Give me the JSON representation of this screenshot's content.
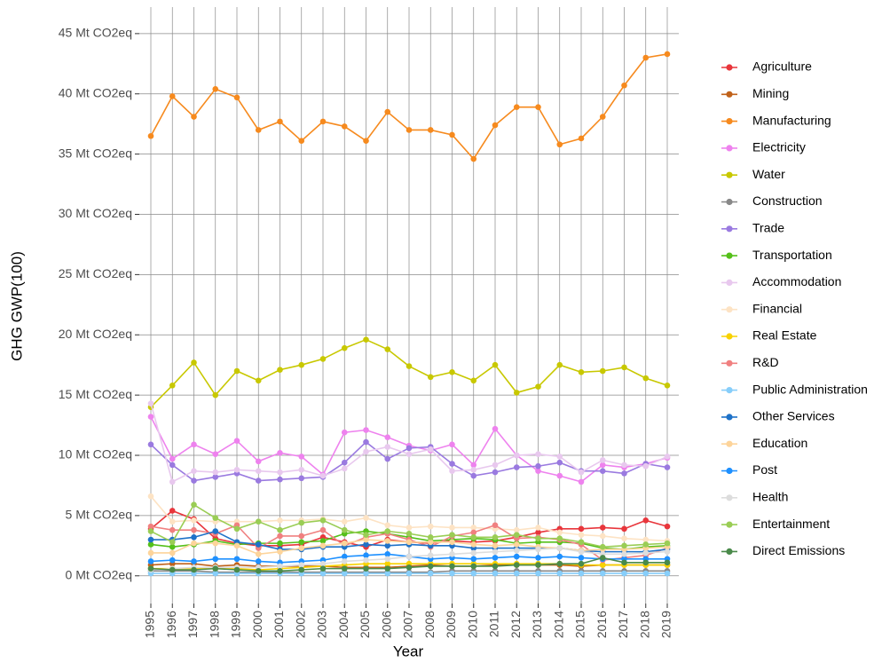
{
  "chart_data": {
    "type": "line",
    "x_label": "Year",
    "y_label": "GHG GWP(100)",
    "categories": [
      "1995",
      "1996",
      "1997",
      "1998",
      "1999",
      "2000",
      "2001",
      "2002",
      "2003",
      "2004",
      "2005",
      "2006",
      "2007",
      "2008",
      "2009",
      "2010",
      "2011",
      "2012",
      "2013",
      "2014",
      "2015",
      "2016",
      "2017",
      "2018",
      "2019"
    ],
    "ylim": [
      -2.3,
      47.2
    ],
    "yticks": [
      {
        "value": 0,
        "label": "0 Mt CO2eq"
      },
      {
        "value": 5,
        "label": "5 Mt CO2eq"
      },
      {
        "value": 10,
        "label": "10 Mt CO2eq"
      },
      {
        "value": 15,
        "label": "15 Mt CO2eq"
      },
      {
        "value": 20,
        "label": "20 Mt CO2eq"
      },
      {
        "value": 25,
        "label": "25 Mt CO2eq"
      },
      {
        "value": 30,
        "label": "30 Mt CO2eq"
      },
      {
        "value": 35,
        "label": "35 Mt CO2eq"
      },
      {
        "value": 40,
        "label": "40 Mt CO2eq"
      },
      {
        "value": 45,
        "label": "45 Mt CO2eq"
      }
    ],
    "grid": true,
    "legend": "right",
    "series": [
      {
        "name": "Agriculture",
        "color": "#e8363c",
        "values": [
          3.9,
          5.4,
          4.7,
          3.1,
          2.7,
          2.5,
          2.5,
          2.6,
          3.2,
          2.8,
          2.4,
          3.0,
          2.8,
          2.7,
          2.9,
          2.8,
          2.9,
          3.2,
          3.6,
          3.9,
          3.9,
          4.0,
          3.9,
          4.6,
          4.1
        ]
      },
      {
        "name": "Mining",
        "color": "#c0621a",
        "values": [
          0.9,
          1.0,
          1.0,
          0.8,
          0.9,
          0.8,
          0.8,
          0.8,
          0.8,
          0.7,
          0.7,
          0.7,
          0.8,
          0.9,
          0.8,
          0.8,
          0.9,
          0.9,
          0.9,
          0.9,
          0.8,
          0.9,
          0.9,
          0.9,
          0.9
        ]
      },
      {
        "name": "Manufacturing",
        "color": "#f68a1e",
        "values": [
          36.5,
          39.8,
          38.1,
          40.4,
          39.7,
          37.0,
          37.7,
          36.1,
          37.7,
          37.3,
          36.1,
          38.5,
          37.0,
          37.0,
          36.6,
          34.6,
          37.4,
          38.9,
          38.9,
          35.8,
          36.3,
          38.1,
          40.7,
          43.0,
          43.3
        ]
      },
      {
        "name": "Electricity",
        "color": "#ee82ee",
        "values": [
          13.2,
          9.7,
          10.9,
          10.1,
          11.2,
          9.5,
          10.2,
          9.9,
          8.4,
          11.9,
          12.1,
          11.5,
          10.8,
          10.4,
          10.9,
          9.2,
          12.2,
          10.0,
          8.7,
          8.3,
          7.8,
          9.2,
          9.0,
          9.3,
          9.8
        ]
      },
      {
        "name": "Water",
        "color": "#c8c800",
        "values": [
          14.0,
          15.8,
          17.7,
          15.0,
          17.0,
          16.2,
          17.1,
          17.5,
          18.0,
          18.9,
          19.6,
          18.8,
          17.4,
          16.5,
          16.9,
          16.2,
          17.5,
          15.2,
          15.7,
          17.5,
          16.9,
          17.0,
          17.3,
          16.4,
          15.8
        ]
      },
      {
        "name": "Construction",
        "color": "#888888",
        "values": [
          0.4,
          0.4,
          0.4,
          0.3,
          0.3,
          0.3,
          0.3,
          0.3,
          0.3,
          0.3,
          0.3,
          0.3,
          0.3,
          0.3,
          0.4,
          0.4,
          0.4,
          0.4,
          0.4,
          0.4,
          0.4,
          0.4,
          0.4,
          0.4,
          0.4
        ]
      },
      {
        "name": "Trade",
        "color": "#9a7ae0",
        "values": [
          10.9,
          9.2,
          7.9,
          8.2,
          8.5,
          7.9,
          8.0,
          8.1,
          8.2,
          9.4,
          11.1,
          9.7,
          10.6,
          10.7,
          9.3,
          8.3,
          8.6,
          9.0,
          9.1,
          9.4,
          8.7,
          8.7,
          8.5,
          9.3,
          9.0
        ]
      },
      {
        "name": "Transportation",
        "color": "#55c01a",
        "values": [
          2.6,
          2.4,
          2.6,
          2.9,
          2.6,
          2.7,
          2.7,
          2.8,
          2.9,
          3.5,
          3.7,
          3.5,
          3.2,
          2.9,
          3.0,
          3.1,
          3.0,
          2.7,
          2.8,
          2.8,
          2.7,
          2.3,
          2.2,
          2.4,
          2.5
        ]
      },
      {
        "name": "Accommodation",
        "color": "#e8c8ee",
        "values": [
          14.3,
          7.8,
          8.7,
          8.6,
          8.8,
          8.7,
          8.6,
          8.8,
          8.3,
          8.9,
          10.3,
          10.7,
          10.1,
          10.5,
          8.7,
          8.8,
          9.2,
          10.0,
          10.1,
          9.9,
          8.6,
          9.6,
          9.2,
          9.1,
          9.9
        ]
      },
      {
        "name": "Financial",
        "color": "#fde3c4",
        "values": [
          6.6,
          4.5,
          4.6,
          4.5,
          4.5,
          4.5,
          4.6,
          4.6,
          4.7,
          4.5,
          4.8,
          4.2,
          4.0,
          4.1,
          4.0,
          4.0,
          3.9,
          3.8,
          4.0,
          3.6,
          3.4,
          3.3,
          3.1,
          3.0,
          2.9
        ]
      },
      {
        "name": "Real Estate",
        "color": "#f8d200",
        "values": [
          0.6,
          0.6,
          0.6,
          0.6,
          0.6,
          0.5,
          0.6,
          0.7,
          0.8,
          0.9,
          1.0,
          1.0,
          1.0,
          1.0,
          1.0,
          1.0,
          1.0,
          1.0,
          1.0,
          1.0,
          0.9,
          0.9,
          0.9,
          0.9,
          0.9
        ]
      },
      {
        "name": "R&D",
        "color": "#f08080",
        "values": [
          4.1,
          3.8,
          3.8,
          3.5,
          4.2,
          2.3,
          3.3,
          3.3,
          3.8,
          2.5,
          3.2,
          3.5,
          3.0,
          2.4,
          3.3,
          3.6,
          4.2,
          3.1,
          3.2,
          3.0,
          2.6,
          1.3,
          1.5,
          1.7,
          2.3
        ]
      },
      {
        "name": "Public Administration",
        "color": "#87cefa",
        "values": [
          0.2,
          0.2,
          0.2,
          0.2,
          0.2,
          0.2,
          0.2,
          0.2,
          0.2,
          0.2,
          0.2,
          0.2,
          0.2,
          0.2,
          0.2,
          0.2,
          0.2,
          0.2,
          0.2,
          0.2,
          0.2,
          0.2,
          0.2,
          0.2,
          0.2
        ]
      },
      {
        "name": "Other Services",
        "color": "#1f72c8",
        "values": [
          3.0,
          3.0,
          3.2,
          3.7,
          2.8,
          2.6,
          2.2,
          2.2,
          2.4,
          2.4,
          2.6,
          2.5,
          2.6,
          2.5,
          2.5,
          2.3,
          2.3,
          2.3,
          2.3,
          2.3,
          2.1,
          2.0,
          2.0,
          2.0,
          2.2
        ]
      },
      {
        "name": "Education",
        "color": "#fdd49a",
        "values": [
          1.9,
          1.9,
          2.7,
          2.7,
          2.5,
          1.8,
          2.0,
          2.3,
          2.5,
          2.7,
          3.0,
          2.9,
          2.8,
          2.8,
          2.8,
          2.6,
          2.5,
          2.6,
          2.4,
          2.3,
          2.1,
          2.2,
          2.2,
          2.3,
          2.4
        ]
      },
      {
        "name": "Post",
        "color": "#1e90ff",
        "values": [
          1.2,
          1.3,
          1.2,
          1.4,
          1.4,
          1.2,
          1.1,
          1.2,
          1.3,
          1.6,
          1.7,
          1.8,
          1.6,
          1.4,
          1.5,
          1.4,
          1.5,
          1.6,
          1.5,
          1.6,
          1.5,
          1.4,
          1.4,
          1.4,
          1.4
        ]
      },
      {
        "name": "Health",
        "color": "#dddddd",
        "values": [
          0.5,
          0.6,
          0.7,
          0.7,
          0.7,
          0.7,
          0.8,
          0.9,
          1.0,
          1.2,
          1.3,
          1.4,
          1.6,
          1.7,
          1.8,
          1.9,
          2.0,
          2.1,
          2.2,
          2.3,
          2.0,
          1.8,
          1.8,
          1.9,
          2.0
        ]
      },
      {
        "name": "Entertainment",
        "color": "#9acd55",
        "values": [
          3.7,
          2.8,
          5.9,
          4.8,
          3.9,
          4.5,
          3.8,
          4.4,
          4.6,
          3.8,
          3.4,
          3.7,
          3.5,
          3.2,
          3.4,
          3.2,
          3.2,
          3.4,
          3.1,
          3.1,
          2.8,
          2.4,
          2.5,
          2.6,
          2.7
        ]
      },
      {
        "name": "Direct Emissions",
        "color": "#4a8a4a",
        "values": [
          0.6,
          0.5,
          0.5,
          0.6,
          0.5,
          0.4,
          0.4,
          0.5,
          0.6,
          0.6,
          0.6,
          0.6,
          0.7,
          0.8,
          0.8,
          0.8,
          0.8,
          0.9,
          0.9,
          1.0,
          1.0,
          1.5,
          1.1,
          1.1,
          1.1
        ]
      }
    ]
  }
}
